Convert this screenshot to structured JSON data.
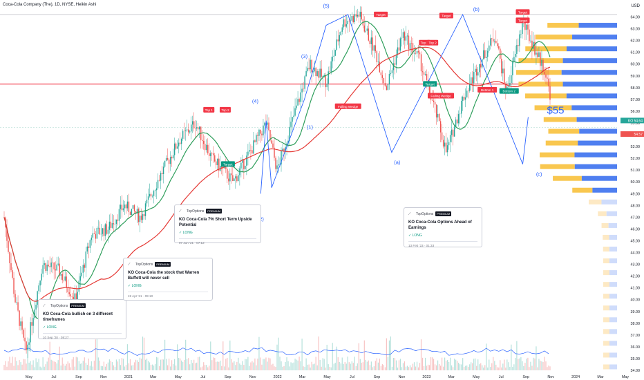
{
  "header": {
    "title": "Coca-Cola Company (The), 1D, NYSE, Heikin Ashi"
  },
  "currency": "USD",
  "chart_data": {
    "type": "candlestick",
    "title": "Coca-Cola Company (The), 1D, NYSE, Heikin Ashi",
    "ylim": [
      34,
      64.5
    ],
    "y_ticks": [
      "34.00",
      "35.00",
      "36.00",
      "37.00",
      "38.00",
      "39.00",
      "40.00",
      "41.00",
      "42.00",
      "43.00",
      "44.00",
      "45.00",
      "46.00",
      "47.00",
      "48.00",
      "49.00",
      "50.00",
      "51.00",
      "52.00",
      "53.00",
      "54.00",
      "55.00",
      "56.00",
      "57.00",
      "58.00",
      "59.00",
      "60.00",
      "61.00",
      "62.00",
      "63.00",
      "64.00"
    ],
    "x_ticks": [
      "May",
      "Jul",
      "Sep",
      "Nov",
      "2021",
      "Mar",
      "May",
      "Jul",
      "Sep",
      "Nov",
      "2022",
      "Mar",
      "May",
      "Jul",
      "Sep",
      "Nov",
      "2023",
      "Mar",
      "May",
      "Jul",
      "Sep",
      "Nov",
      "2024",
      "Mar",
      "May"
    ],
    "price_path": [
      [
        0,
        47.0
      ],
      [
        0.02,
        40.0
      ],
      [
        0.04,
        35.5
      ],
      [
        0.07,
        43.0
      ],
      [
        0.1,
        42.5
      ],
      [
        0.13,
        40.0
      ],
      [
        0.16,
        45.5
      ],
      [
        0.19,
        46.0
      ],
      [
        0.22,
        48.0
      ],
      [
        0.25,
        47.0
      ],
      [
        0.28,
        50.0
      ],
      [
        0.32,
        53.5
      ],
      [
        0.35,
        55.0
      ],
      [
        0.38,
        52.0
      ],
      [
        0.42,
        50.0
      ],
      [
        0.45,
        52.5
      ],
      [
        0.48,
        55.0
      ],
      [
        0.5,
        51.0
      ],
      [
        0.53,
        55.5
      ],
      [
        0.56,
        60.0
      ],
      [
        0.59,
        58.5
      ],
      [
        0.62,
        63.5
      ],
      [
        0.65,
        64.2
      ],
      [
        0.68,
        61.0
      ],
      [
        0.7,
        58.0
      ],
      [
        0.73,
        62.5
      ],
      [
        0.76,
        60.5
      ],
      [
        0.79,
        56.0
      ],
      [
        0.81,
        52.5
      ],
      [
        0.84,
        57.0
      ],
      [
        0.87,
        60.0
      ],
      [
        0.9,
        62.5
      ],
      [
        0.92,
        57.5
      ],
      [
        0.95,
        63.5
      ],
      [
        0.97,
        61.5
      ],
      [
        0.99,
        59.5
      ],
      [
        1.0,
        57.5
      ]
    ],
    "series": [
      {
        "name": "",
        "color": "#2e9e5b"
      },
      {
        "name": "",
        "color": "#e53935"
      }
    ],
    "price_labels": [
      {
        "label": "KO",
        "value": "54.64",
        "color": "#26a69a"
      },
      {
        "label": "",
        "value": "54.57",
        "color": "#ef5350"
      }
    ],
    "annotations": {
      "waves": [
        "(1)",
        "(2)",
        "(3)",
        "(4)",
        "(5)",
        "(a)",
        "(b)",
        "(c)"
      ],
      "targets": [
        "Target",
        "Target",
        "Target",
        "Target",
        "Target",
        "Target"
      ],
      "tops": [
        "Top 1",
        "Top 2",
        "Top 1",
        "Top 2"
      ],
      "wedges": [
        "Falling Wedge",
        "Falling Wedge"
      ],
      "bottoms": [
        "Bottom 1",
        "Bottom 2"
      ],
      "price_callout": "$55"
    },
    "grid": false
  },
  "notes": [
    {
      "brand": "TopOptions",
      "badge": "PREMIUM",
      "title": "KO Coca-Cola bullish on 3 different timeframes",
      "status": "LONG",
      "date": "10 Sep '20 · 08:27"
    },
    {
      "brand": "TopOptions",
      "badge": "PREMIUM",
      "title": "KO Coca-Cola the stock that Warren Buffett will never sell",
      "status": "LONG",
      "date": "19 Apr '21 · 09:10"
    },
    {
      "brand": "TopOptions",
      "badge": "PREMIUM",
      "title": "KO Coca-Cola 7% Short Term Upside Potential",
      "status": "LONG",
      "date": "07 Jun '21 · 07:12"
    },
    {
      "brand": "TopOptions",
      "badge": "PREMIUM",
      "title": "KO Coca-Cola Options Ahead of Earnings",
      "status": "LONG",
      "date": "13 Feb '23 · 01:33"
    }
  ]
}
